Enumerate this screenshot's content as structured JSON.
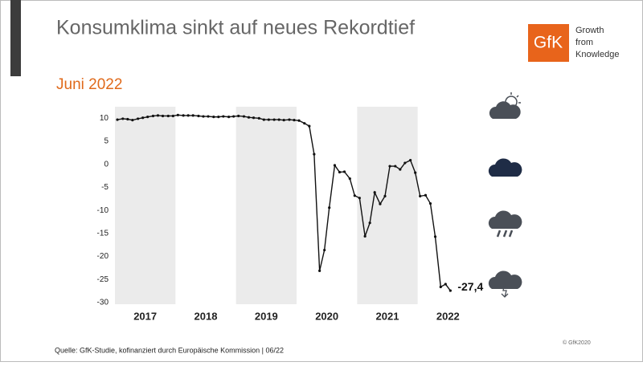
{
  "chart_data": {
    "type": "line",
    "title": "Konsumklima sinkt auf neues Rekordtief",
    "subtitle": "Juni 2022",
    "logo": {
      "mark": "GfK",
      "tagline": [
        "Growth",
        "from",
        "Knowledge"
      ]
    },
    "source": "Quelle: GfK-Studie, kofinanziert durch Europäische Kommission | 06/22",
    "copyright": "© GfK2020",
    "x": [
      2017.04,
      2017.13,
      2017.21,
      2017.29,
      2017.38,
      2017.46,
      2017.54,
      2017.63,
      2017.71,
      2017.79,
      2017.88,
      2017.96,
      2018.04,
      2018.13,
      2018.21,
      2018.29,
      2018.38,
      2018.46,
      2018.54,
      2018.63,
      2018.71,
      2018.79,
      2018.88,
      2018.96,
      2019.04,
      2019.13,
      2019.21,
      2019.29,
      2019.38,
      2019.46,
      2019.54,
      2019.63,
      2019.71,
      2019.79,
      2019.88,
      2019.96,
      2020.04,
      2020.13,
      2020.21,
      2020.29,
      2020.38,
      2020.46,
      2020.54,
      2020.63,
      2020.71,
      2020.79,
      2020.88,
      2020.96,
      2021.04,
      2021.13,
      2021.21,
      2021.29,
      2021.38,
      2021.46,
      2021.54,
      2021.63,
      2021.71,
      2021.79,
      2021.88,
      2021.96,
      2022.04,
      2022.13,
      2022.21,
      2022.29,
      2022.38,
      2022.46,
      2022.54
    ],
    "series": [
      {
        "name": "Konsumklima",
        "color": "#111111",
        "values": [
          9.7,
          9.9,
          9.8,
          9.6,
          9.9,
          10.1,
          10.3,
          10.5,
          10.6,
          10.5,
          10.5,
          10.5,
          10.7,
          10.6,
          10.6,
          10.6,
          10.5,
          10.4,
          10.4,
          10.3,
          10.3,
          10.4,
          10.3,
          10.4,
          10.5,
          10.4,
          10.2,
          10.1,
          10.0,
          9.7,
          9.7,
          9.7,
          9.7,
          9.6,
          9.7,
          9.6,
          9.5,
          8.9,
          8.3,
          2.2,
          -23.1,
          -18.6,
          -9.4,
          -0.2,
          -1.7,
          -1.6,
          -3.1,
          -6.8,
          -7.3,
          -15.6,
          -12.7,
          -6.1,
          -8.6,
          -6.9,
          -0.4,
          -0.4,
          -1.1,
          0.3,
          0.9,
          -1.8,
          -6.9,
          -6.7,
          -8.5,
          -15.7,
          -26.6,
          -26.0,
          -27.4
        ],
        "value_labels": [
          null,
          null,
          null,
          null,
          null,
          null,
          null,
          null,
          null,
          null,
          null,
          null,
          null,
          null,
          null,
          null,
          null,
          null,
          null,
          null,
          null,
          null,
          null,
          null,
          null,
          null,
          null,
          null,
          null,
          null,
          null,
          null,
          null,
          null,
          null,
          null,
          null,
          null,
          null,
          null,
          null,
          null,
          null,
          null,
          null,
          null,
          null,
          null,
          null,
          null,
          null,
          null,
          null,
          null,
          null,
          null,
          null,
          null,
          null,
          null,
          null,
          null,
          null,
          null,
          null,
          null,
          "-27,4"
        ]
      }
    ],
    "xlim": [
      2017,
      2023
    ],
    "xticks": [
      {
        "value": 2017.5,
        "label": "2017"
      },
      {
        "value": 2018.5,
        "label": "2018"
      },
      {
        "value": 2019.5,
        "label": "2019"
      },
      {
        "value": 2020.5,
        "label": "2020"
      },
      {
        "value": 2021.5,
        "label": "2021"
      },
      {
        "value": 2022.5,
        "label": "2022"
      }
    ],
    "ylim": [
      -30,
      12.5
    ],
    "yticks": [
      10,
      5,
      0,
      -5,
      -10,
      -15,
      -20,
      -25,
      -30
    ],
    "band_color": "#ebebeb"
  }
}
